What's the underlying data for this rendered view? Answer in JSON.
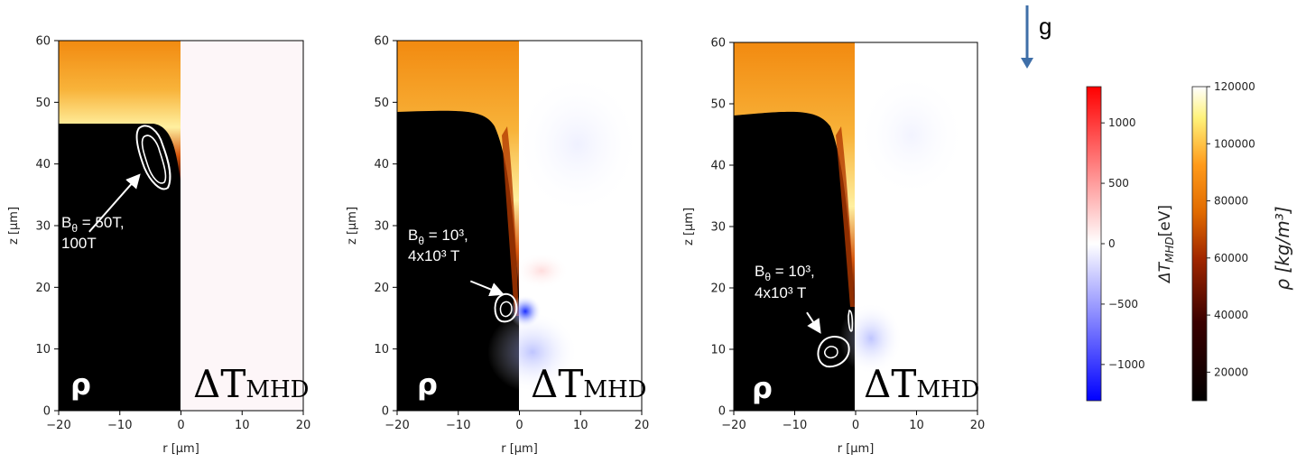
{
  "chart_data": [
    {
      "type": "heatmap",
      "xlabel": "r [μm]",
      "ylabel": "z [μm]",
      "xlim": [
        -20,
        20
      ],
      "ylim": [
        0,
        60
      ],
      "x_ticks": [
        "−20",
        "−10",
        "0",
        "10",
        "20"
      ],
      "y_ticks": [
        "0",
        "10",
        "20",
        "30",
        "40",
        "50",
        "60"
      ],
      "left_half_label": "ρ",
      "right_half_label": "ΔT",
      "right_half_label_sub": "MHD",
      "annotation_line1": "B",
      "annotation_sub": "θ",
      "annotation_rest": " = 50T,",
      "annotation_line2": "100T",
      "interface_height_um": 46,
      "contour_center": [
        -5,
        40
      ],
      "arrow_tail": [
        -15,
        29
      ],
      "arrow_head": [
        -7,
        38
      ]
    },
    {
      "type": "heatmap",
      "xlabel": "r [μm]",
      "ylabel": "z [μm]",
      "xlim": [
        -20,
        20
      ],
      "ylim": [
        0,
        60
      ],
      "x_ticks": [
        "−20",
        "−10",
        "0",
        "10",
        "20"
      ],
      "y_ticks": [
        "0",
        "10",
        "20",
        "30",
        "40",
        "50",
        "60"
      ],
      "left_half_label": "ρ",
      "right_half_label": "ΔT",
      "right_half_label_sub": "MHD",
      "annotation_line1": "B",
      "annotation_sub": "θ",
      "annotation_rest": " = 10³,",
      "annotation_line2": "4x10³ T",
      "interface_height_um": 46,
      "contour_center": [
        -2,
        16
      ],
      "arrow_tail": [
        -8,
        21
      ],
      "arrow_head": [
        -3,
        19
      ]
    },
    {
      "type": "heatmap",
      "xlabel": "r [μm]",
      "ylabel": "z [μm]",
      "xlim": [
        -20,
        20
      ],
      "ylim": [
        0,
        60
      ],
      "x_ticks": [
        "−20",
        "−10",
        "0",
        "10",
        "20"
      ],
      "y_ticks": [
        "0",
        "10",
        "20",
        "30",
        "40",
        "50",
        "60"
      ],
      "left_half_label": "ρ",
      "right_half_label": "ΔT",
      "right_half_label_sub": "MHD",
      "annotation_line1": "B",
      "annotation_sub": "θ",
      "annotation_rest": " = 10³,",
      "annotation_line2": "4x10³ T",
      "interface_height_um": 46,
      "contour_center": [
        -4,
        10
      ],
      "arrow_tail": [
        -8,
        16
      ],
      "arrow_head": [
        -6,
        13
      ]
    }
  ],
  "colorbars": [
    {
      "label": "ΔT",
      "label_sub": "MHD",
      "label_unit": "[eV]",
      "range": [
        -1300,
        1300
      ],
      "ticks": [
        1000,
        500,
        0,
        -500,
        -1000
      ],
      "tick_labels": [
        "1000",
        "500",
        "0",
        "−500",
        "−1000"
      ],
      "colormap": "bwr"
    },
    {
      "label": "ρ  [kg/m³]",
      "range": [
        10000,
        120000
      ],
      "ticks": [
        120000,
        100000,
        80000,
        60000,
        40000,
        20000
      ],
      "tick_labels": [
        "120000",
        "100000",
        "80000",
        "60000",
        "40000",
        "20000"
      ],
      "colormap": "afmhot"
    }
  ],
  "gravity": {
    "label": "g"
  }
}
